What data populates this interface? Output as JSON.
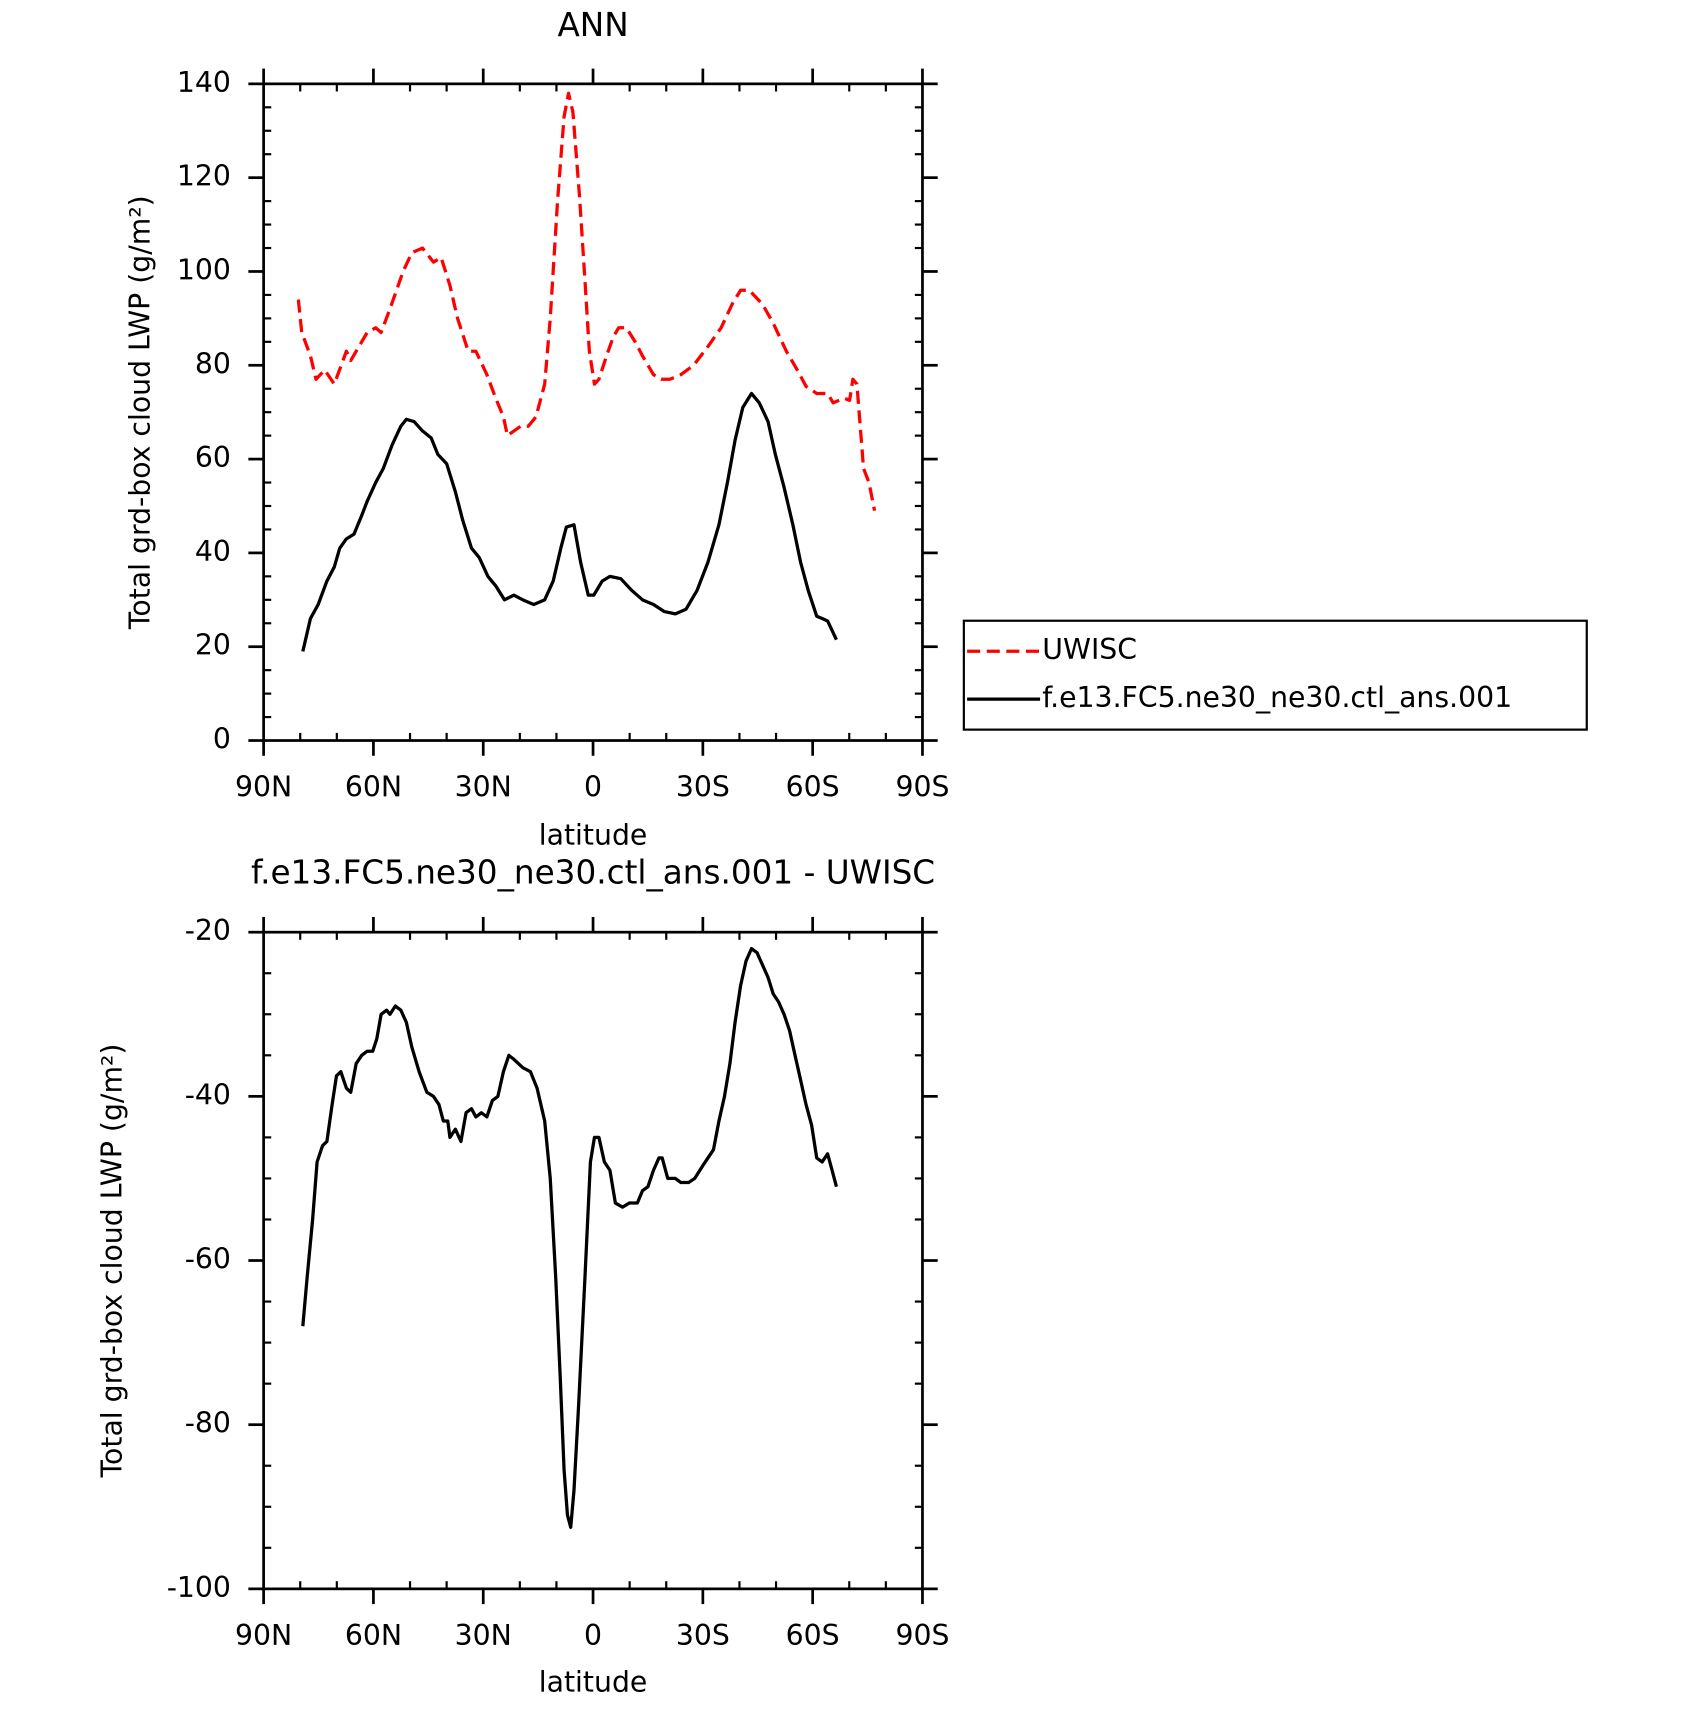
{
  "chart_data": [
    {
      "type": "line",
      "title": "ANN",
      "y_label": "Total grd-box cloud LWP (g/m²)",
      "x_label": "latitude",
      "xlim": [
        90,
        -90
      ],
      "xticks": [
        {
          "value": 90,
          "label": "90N"
        },
        {
          "value": 60,
          "label": "60N"
        },
        {
          "value": 30,
          "label": "30N"
        },
        0,
        {
          "value": -30,
          "label": "30S"
        },
        {
          "value": -60,
          "label": "60S"
        },
        {
          "value": -90,
          "label": "90S"
        }
      ],
      "ylim": [
        0,
        140
      ],
      "yticks": [
        0,
        20,
        40,
        60,
        80,
        100,
        120,
        140
      ],
      "legend": "right",
      "series": [
        {
          "name": "UWISC",
          "color": "#ff0000",
          "linestyle": "dashed",
          "x": [
            80.5,
            79.6,
            77.2,
            75.7,
            73.3,
            70.7,
            67.4,
            66.2,
            61.7,
            59.4,
            57.9,
            55.5,
            51.9,
            49.5,
            46.6,
            43.6,
            41.5,
            39.1,
            37.0,
            34.1,
            32.0,
            29.0,
            26.6,
            24.5,
            23.4,
            19.8,
            17.7,
            15.6,
            13.2,
            11.7,
            9.7,
            7.9,
            6.7,
            5.5,
            3.7,
            2.2,
            1.0,
            -0.4,
            -1.6,
            -3.7,
            -5.5,
            -7.0,
            -9.1,
            -11.5,
            -13.5,
            -16.5,
            -18.6,
            -21.0,
            -24.0,
            -27.5,
            -31.4,
            -35.0,
            -38.0,
            -40.3,
            -42.7,
            -46.3,
            -49.2,
            -52.8,
            -55.8,
            -58.2,
            -61.1,
            -64.1,
            -65.6,
            -68.6,
            -70.1,
            -71.0,
            -72.1,
            -73.9,
            -75.4,
            -76.9
          ],
          "values": [
            94,
            87,
            82,
            77,
            79,
            76,
            83,
            81,
            87,
            88,
            87,
            92,
            100,
            104,
            105,
            102,
            103,
            97,
            90,
            83,
            83,
            78,
            73,
            69,
            65,
            67,
            67,
            69,
            76,
            90,
            115,
            133,
            138,
            134,
            116,
            98,
            83,
            76,
            77,
            82,
            86,
            88,
            88,
            85,
            82,
            78,
            77,
            77,
            78,
            80,
            84,
            88,
            93,
            96,
            96,
            93,
            89,
            83,
            79,
            75.5,
            74,
            74,
            72,
            73,
            72.5,
            77,
            76,
            58,
            55,
            49
          ]
        },
        {
          "name": "f.e13.FC5.ne30_ne30.ctl_ans.001",
          "color": "#000000",
          "linestyle": "solid",
          "x": [
            79.3,
            77.2,
            75.1,
            72.7,
            70.7,
            69.2,
            67.4,
            65.3,
            63.2,
            61.7,
            59.4,
            57.3,
            54.9,
            52.5,
            51.0,
            48.9,
            46.6,
            44.2,
            42.4,
            40.0,
            37.6,
            35.6,
            33.2,
            31.1,
            28.7,
            26.6,
            24.2,
            21.6,
            19.2,
            16.2,
            13.2,
            10.9,
            8.8,
            7.3,
            5.2,
            3.4,
            1.3,
            -0.2,
            -2.5,
            -4.6,
            -7.6,
            -10.6,
            -13.5,
            -16.5,
            -19.5,
            -22.5,
            -25.4,
            -28.4,
            -31.4,
            -34.4,
            -36.7,
            -38.8,
            -40.9,
            -43.3,
            -45.4,
            -47.8,
            -49.8,
            -52.2,
            -54.6,
            -56.7,
            -58.8,
            -61.1,
            -62.6,
            -64.1,
            -66.5
          ],
          "values": [
            19,
            26,
            29,
            34,
            37,
            41,
            43,
            44,
            48,
            51,
            55,
            58,
            63,
            67,
            68.5,
            68,
            66,
            64.5,
            61,
            59,
            53,
            47,
            41,
            39,
            35,
            33,
            30,
            31,
            30,
            29,
            30,
            34,
            41,
            45.5,
            46,
            38,
            31,
            31,
            34,
            35,
            34.5,
            32,
            30,
            29,
            27.5,
            27,
            28,
            32,
            38,
            46,
            55,
            64,
            71,
            74,
            72,
            68,
            61,
            54,
            46,
            38,
            32,
            26.5,
            26,
            25.5,
            21.5
          ]
        }
      ]
    },
    {
      "type": "line",
      "title": "f.e13.FC5.ne30_ne30.ctl_ans.001 - UWISC",
      "y_label": "Total grd-box cloud LWP (g/m²)",
      "x_label": "latitude",
      "xlim": [
        90,
        -90
      ],
      "xticks": [
        {
          "value": 90,
          "label": "90N"
        },
        {
          "value": 60,
          "label": "60N"
        },
        {
          "value": 30,
          "label": "30N"
        },
        0,
        {
          "value": -30,
          "label": "30S"
        },
        {
          "value": -60,
          "label": "60S"
        },
        {
          "value": -90,
          "label": "90S"
        }
      ],
      "ylim": [
        -100,
        -20
      ],
      "yticks": [
        -100,
        -80,
        -60,
        -40,
        -20
      ],
      "series": [
        {
          "color": "#000000",
          "linestyle": "solid",
          "x": [
            79.3,
            78.1,
            76.6,
            75.4,
            73.9,
            72.7,
            71.3,
            70.1,
            68.9,
            67.4,
            66.2,
            64.7,
            63.2,
            61.7,
            60.2,
            59.1,
            57.9,
            56.4,
            55.5,
            54.0,
            52.5,
            51.0,
            49.5,
            47.5,
            45.4,
            43.6,
            42.1,
            40.9,
            39.7,
            39.1,
            37.6,
            36.1,
            34.7,
            33.2,
            32.0,
            30.5,
            29.0,
            27.5,
            26.0,
            24.5,
            23.0,
            21.6,
            19.2,
            17.1,
            15.3,
            13.2,
            11.7,
            10.2,
            9.0,
            7.9,
            7.0,
            6.1,
            5.2,
            4.0,
            2.2,
            0.7,
            -0.4,
            -1.6,
            -3.1,
            -4.6,
            -6.1,
            -8.1,
            -9.9,
            -12.1,
            -13.5,
            -15.0,
            -16.5,
            -18.0,
            -18.9,
            -20.4,
            -22.5,
            -24.0,
            -26.1,
            -27.8,
            -29.9,
            -31.4,
            -32.9,
            -34.4,
            -35.9,
            -37.4,
            -38.8,
            -40.3,
            -41.8,
            -43.3,
            -44.8,
            -46.3,
            -47.8,
            -49.2,
            -50.7,
            -52.2,
            -53.7,
            -55.2,
            -56.7,
            -58.2,
            -59.7,
            -61.1,
            -62.6,
            -64.1,
            -65.3,
            -66.5
          ],
          "values": [
            -68,
            -62,
            -55,
            -48,
            -46,
            -45.5,
            -41,
            -37.5,
            -37,
            -39,
            -39.5,
            -36,
            -35,
            -34.5,
            -34.5,
            -33,
            -30,
            -29.5,
            -30,
            -29,
            -29.5,
            -31,
            -34,
            -37,
            -39.5,
            -40,
            -41,
            -43,
            -43,
            -45,
            -44,
            -45.5,
            -42,
            -41.5,
            -42.5,
            -42,
            -42.5,
            -40.5,
            -40,
            -37,
            -35,
            -35.5,
            -36.5,
            -37,
            -39,
            -43,
            -50,
            -62,
            -74,
            -85.5,
            -91,
            -92.5,
            -88,
            -78,
            -62,
            -48,
            -45,
            -45,
            -48,
            -49,
            -53,
            -53.5,
            -53,
            -53,
            -51.5,
            -51,
            -49,
            -47.5,
            -47.5,
            -50,
            -50,
            -50.5,
            -50.5,
            -50,
            -48.5,
            -47.5,
            -46.5,
            -43,
            -40,
            -36,
            -31,
            -26.5,
            -23.5,
            -22,
            -22.5,
            -24,
            -25.5,
            -27.5,
            -28.5,
            -30,
            -32,
            -35,
            -38,
            -41,
            -43.5,
            -47.5,
            -48,
            -47,
            -49,
            -51
          ]
        }
      ]
    }
  ]
}
